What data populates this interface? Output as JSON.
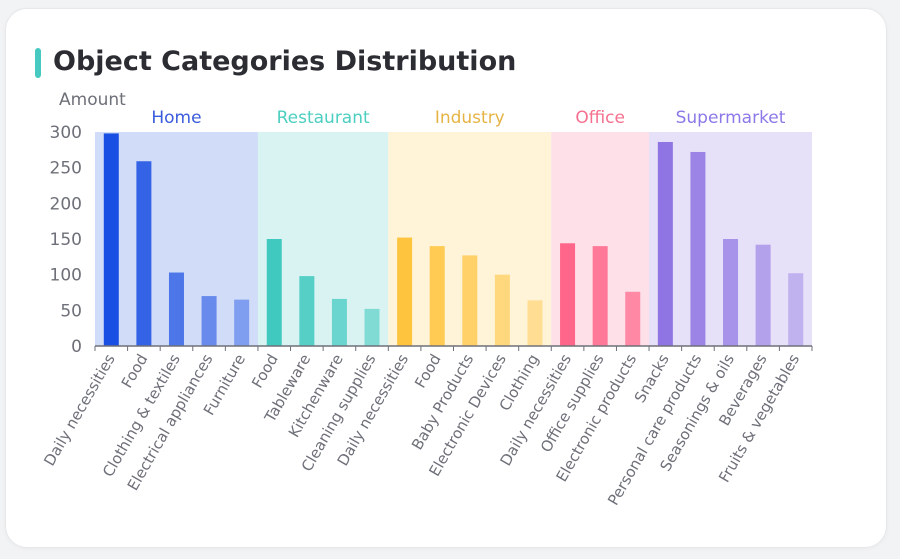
{
  "card": {
    "title": "Object Categories Distribution",
    "accent_color": "#45c9c0"
  },
  "chart_data": {
    "type": "bar",
    "title": "Object Categories Distribution",
    "ylabel": "Amount",
    "xlabel": "",
    "ylim": [
      0,
      300
    ],
    "yticks": [
      0,
      50,
      100,
      150,
      200,
      250,
      300
    ],
    "grid": false,
    "groups": [
      {
        "name": "Home",
        "label_color": "#3a5bdc",
        "bg_color": "#d1dcf8",
        "bar_color": "#1a4fe3",
        "categories": [
          "Daily necessities",
          "Food",
          "Clothing & textiles",
          "Electrical appliances",
          "Furniture"
        ],
        "values": [
          298,
          259,
          103,
          70,
          65
        ]
      },
      {
        "name": "Restaurant",
        "label_color": "#4ccfc0",
        "bg_color": "#d8f3f2",
        "bar_color": "#40c9bf",
        "categories": [
          "Food",
          "Tableware",
          "Kitchenware",
          "Cleaning supplies"
        ],
        "values": [
          150,
          98,
          66,
          52
        ]
      },
      {
        "name": "Industry",
        "label_color": "#e6b445",
        "bg_color": "#fff3d8",
        "bar_color": "#ffc43d",
        "categories": [
          "Daily necessities",
          "Food",
          "Baby Products",
          "Electronic Devices",
          "Clothing"
        ],
        "values": [
          152,
          140,
          127,
          100,
          64
        ]
      },
      {
        "name": "Office",
        "label_color": "#f5708f",
        "bg_color": "#fde0e8",
        "bar_color": "#ff668a",
        "categories": [
          "Daily necessities",
          "Office supplies",
          "Electronic products"
        ],
        "values": [
          144,
          140,
          76
        ]
      },
      {
        "name": "Supermarket",
        "label_color": "#8c78e8",
        "bg_color": "#e6e0f8",
        "bar_color": "#8f74e3",
        "categories": [
          "Snacks",
          "Personal care products",
          "Seasonings & oils",
          "Beverages",
          "Fruits & vegetables"
        ],
        "values": [
          286,
          272,
          150,
          142,
          102
        ]
      }
    ]
  }
}
